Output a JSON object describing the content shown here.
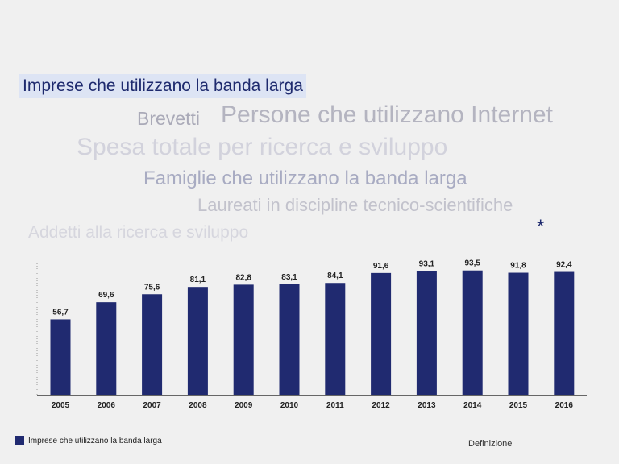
{
  "indicators": {
    "selected": "Imprese che utilizzano la banda larga",
    "brevetti": "Brevetti",
    "persone_internet": "Persone che utilizzano Internet",
    "spesa_ricerca": "Spesa totale per ricerca e sviluppo",
    "famiglie_banda": "Famiglie che utilizzano la banda larga",
    "laureati": "Laureati in discipline tecnico-scientifiche",
    "addetti": "Addetti alla ricerca e sviluppo"
  },
  "asterisk": "*",
  "definition_label": "Definizione",
  "colors": {
    "bar": "#202a70",
    "selected_bg": "#dde4f4",
    "selected_text": "#1e2a6e"
  },
  "chart_data": {
    "type": "bar",
    "categories": [
      "2005",
      "2006",
      "2007",
      "2008",
      "2009",
      "2010",
      "2011",
      "2012",
      "2013",
      "2014",
      "2015",
      "2016"
    ],
    "series": [
      {
        "name": "Imprese che utilizzano la banda larga",
        "values": [
          56.7,
          69.6,
          75.6,
          81.1,
          82.8,
          83.1,
          84.1,
          91.6,
          93.1,
          93.5,
          91.8,
          92.4
        ],
        "labels": [
          "56,7",
          "69,6",
          "75,6",
          "81,1",
          "82,8",
          "83,1",
          "84,1",
          "91,6",
          "93,1",
          "93,5",
          "91,8",
          "92,4"
        ]
      }
    ],
    "ylim": [
      0,
      100
    ],
    "grid": false,
    "legend": "bottom-left"
  }
}
